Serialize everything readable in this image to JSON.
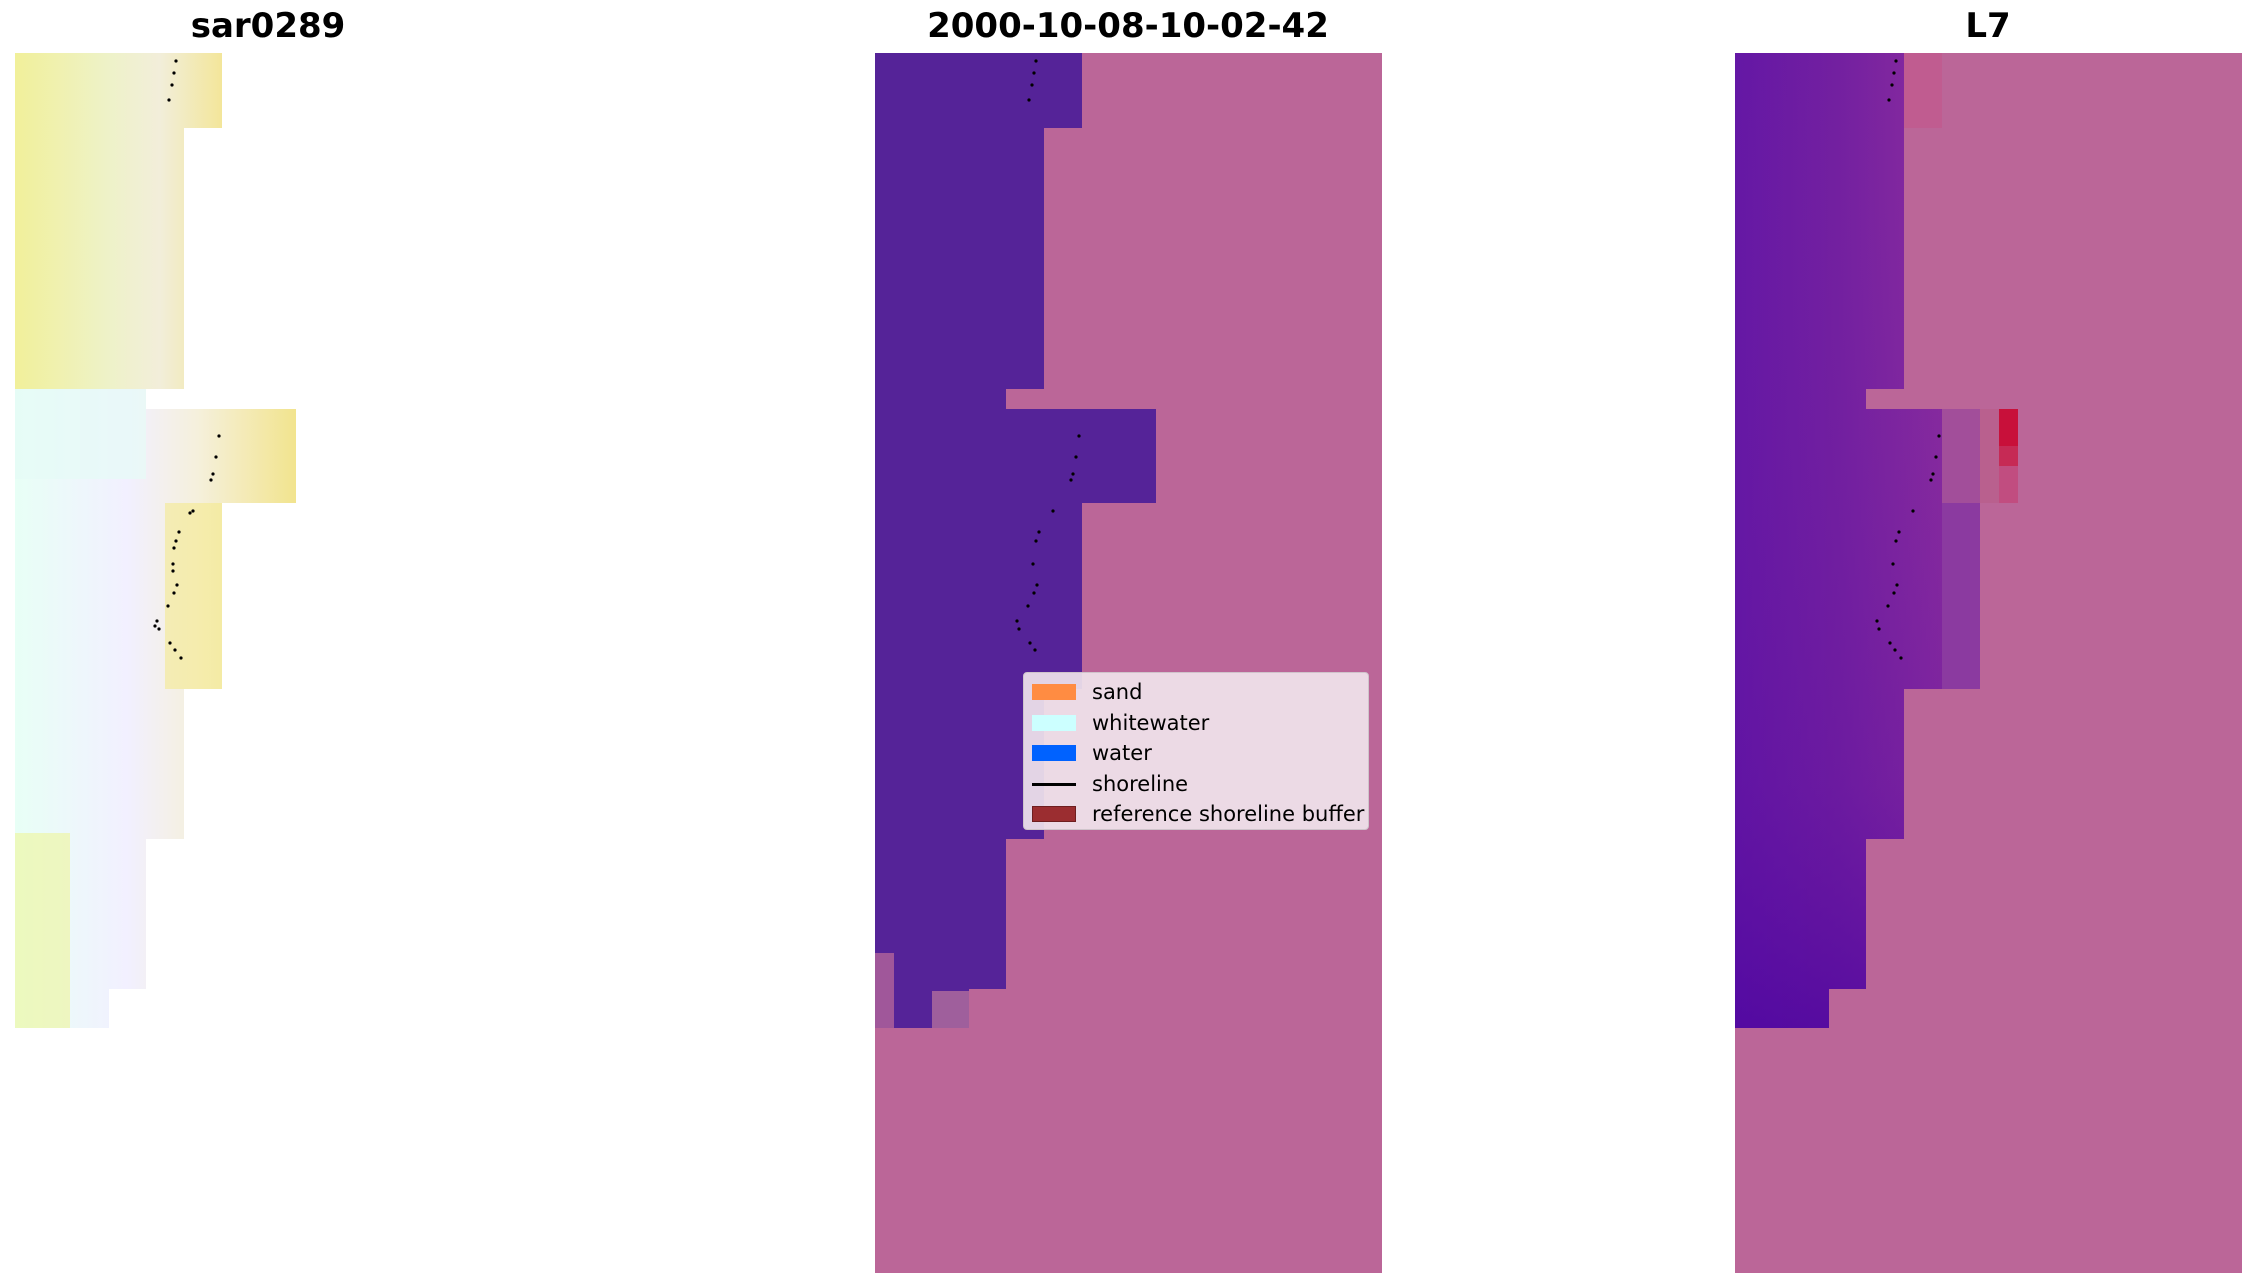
{
  "panels": [
    {
      "title": "sar0289"
    },
    {
      "title": "2000-10-08-10-02-42"
    },
    {
      "title": "L7"
    }
  ],
  "legend": {
    "items": [
      {
        "label": "sand",
        "color": "#ff8c42",
        "kind": "patch"
      },
      {
        "label": "whitewater",
        "color": "#ccffff",
        "kind": "patch"
      },
      {
        "label": "water",
        "color": "#0062ff",
        "kind": "patch"
      },
      {
        "label": "shoreline",
        "color": "#000000",
        "kind": "line"
      },
      {
        "label": "reference shoreline buffer",
        "color": "#9b2d30",
        "kind": "patch"
      }
    ]
  },
  "colors": {
    "sar_yellow": "#f4ec8c",
    "sar_pale": "#eef2c8",
    "sar_white": "#f4f0ff",
    "class_purple": "#552398",
    "class_pink": "#bb6698",
    "index_purple": "#6e1ea0",
    "index_deep": "#54099f",
    "index_red": "#c8103a"
  }
}
